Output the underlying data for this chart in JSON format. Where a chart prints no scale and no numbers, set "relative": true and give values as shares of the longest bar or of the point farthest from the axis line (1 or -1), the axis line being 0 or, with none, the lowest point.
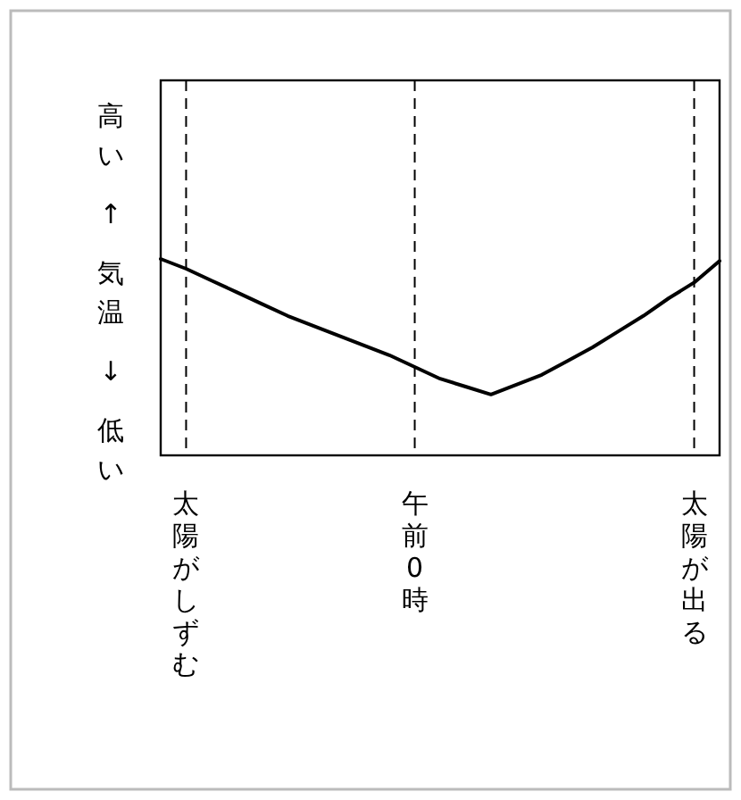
{
  "chart_data": {
    "type": "line",
    "relative": true,
    "ylabel": "高い ↑ 気温 ↓ 低い",
    "categories": [
      null,
      "太陽がしずむ",
      null,
      null,
      null,
      null,
      null,
      null,
      null,
      null,
      "午前0時",
      null,
      null,
      null,
      null,
      null,
      null,
      null,
      null,
      null,
      null,
      "太陽が出る",
      null
    ],
    "series": [
      {
        "color": "#000000",
        "values": [
          1,
          0.95,
          0.89,
          0.83,
          0.77,
          0.71,
          0.66,
          0.61,
          0.56,
          0.51,
          0.45,
          0.39,
          0.35,
          0.31,
          0.36,
          0.41,
          0.48,
          0.55,
          0.63,
          0.71,
          0.8,
          0.88,
          0.99
        ]
      }
    ],
    "ref_lines": [
      {
        "axis": "x",
        "value": "太陽がしずむ",
        "line_style": "dashed"
      },
      {
        "axis": "x",
        "value": "午前0時",
        "line_style": "dashed"
      },
      {
        "axis": "x",
        "value": "太陽が出る",
        "line_style": "dashed"
      }
    ]
  }
}
